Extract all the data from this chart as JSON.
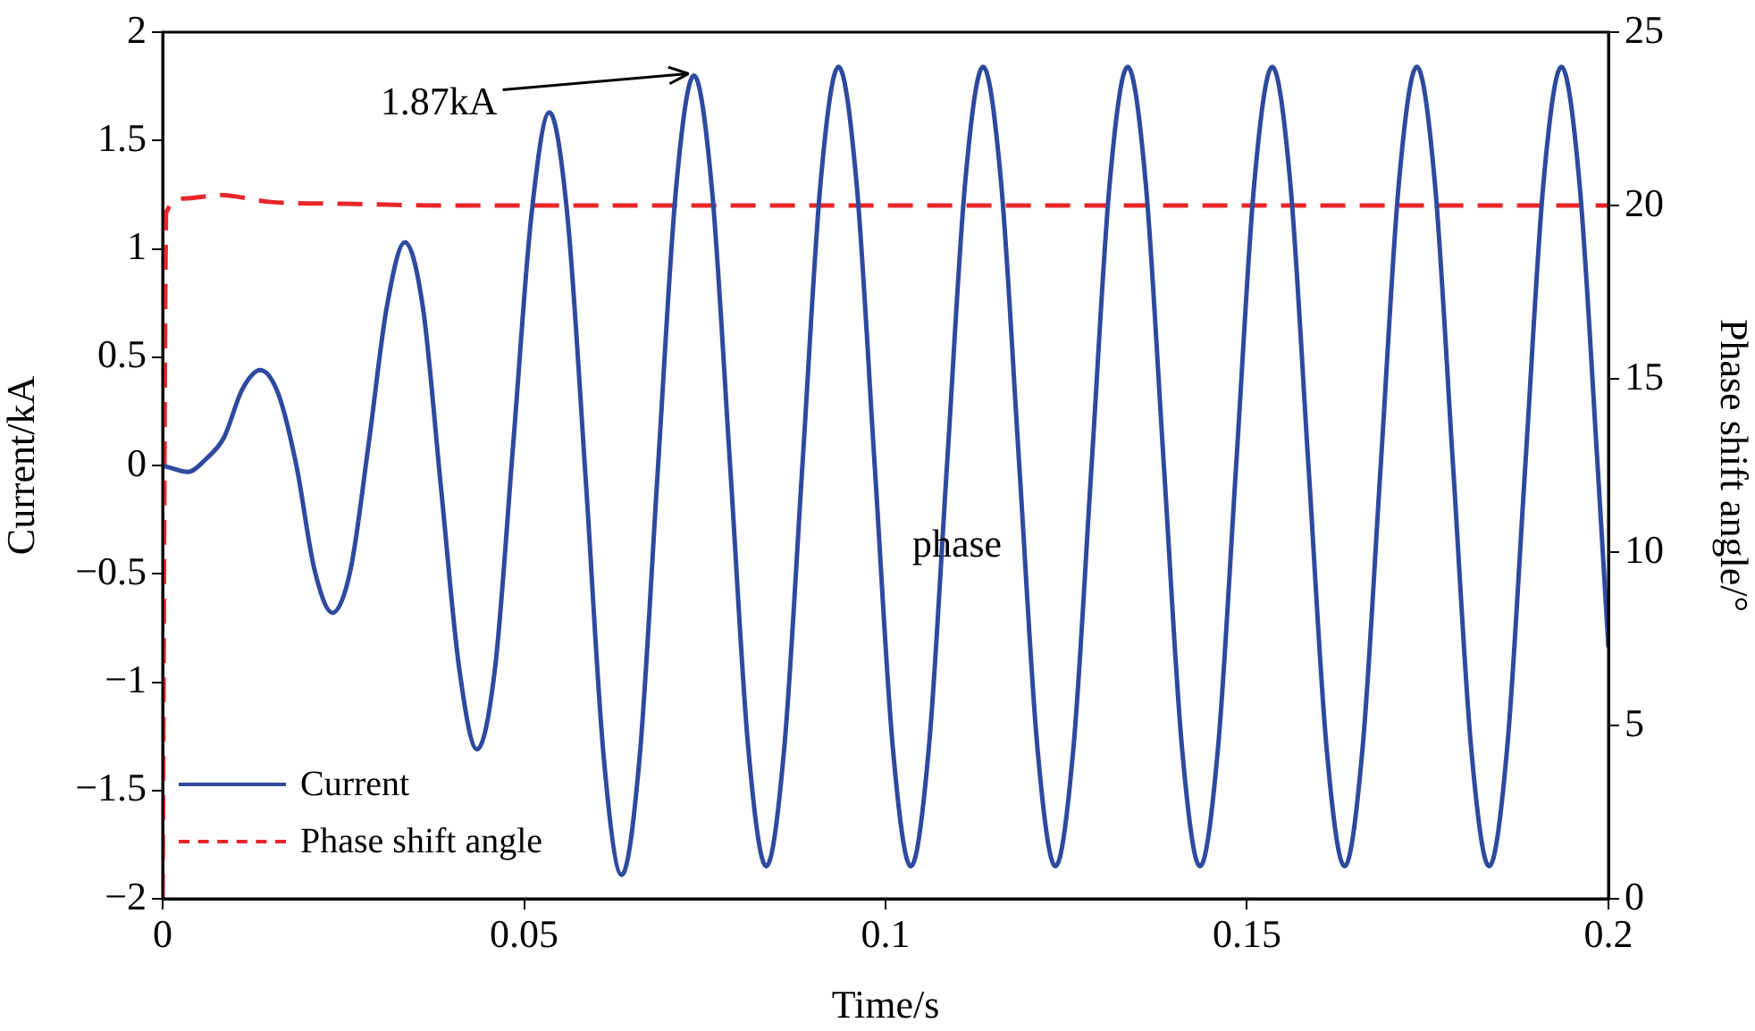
{
  "chart_data": {
    "type": "line",
    "xlabel": "Time/s",
    "ylabel": "Current/kA",
    "y2label": "Phase shift angle/°",
    "xlim": [
      0,
      0.2
    ],
    "xticks": [
      0,
      0.05,
      0.1,
      0.15,
      0.2
    ],
    "ylim": [
      -2,
      2
    ],
    "yticks": [
      {
        "value": -2,
        "label": "−2"
      },
      {
        "value": -1.5,
        "label": "−1.5"
      },
      {
        "value": -1,
        "label": "−1"
      },
      {
        "value": -0.5,
        "label": "−0.5"
      },
      0,
      0.5,
      1,
      1.5,
      2
    ],
    "y2lim": [
      0,
      25
    ],
    "y2ticks": [
      0,
      5,
      10,
      15,
      20,
      25
    ],
    "grid": false,
    "legend": "bottom left",
    "marker": "none",
    "annotations": [
      {
        "text": "1.87kA",
        "x": 0.0735,
        "y": 1.8
      },
      "phase"
    ],
    "series": [
      {
        "name": "Current",
        "color": "#2e4a9e",
        "line_style": "solid",
        "x": [
          0,
          0.001,
          0.0035,
          0.006,
          0.0085,
          0.011,
          0.0135,
          0.016,
          0.0185,
          0.021,
          0.0235,
          0.026,
          0.0285,
          0.031,
          0.0335,
          0.036,
          0.0385,
          0.041,
          0.0435,
          0.046,
          0.0485,
          0.051,
          0.0535,
          0.056,
          0.0585,
          0.061,
          0.0635,
          0.066,
          0.0685,
          0.071,
          0.0735,
          0.076,
          0.0785,
          0.081,
          0.0835,
          0.086,
          0.0885,
          0.091,
          0.0935,
          0.096,
          0.0985,
          0.101,
          0.1035,
          0.106,
          0.1085,
          0.111,
          0.1135,
          0.116,
          0.1185,
          0.121,
          0.1235,
          0.126,
          0.1285,
          0.131,
          0.1335,
          0.136,
          0.1385,
          0.141,
          0.1435,
          0.146,
          0.1485,
          0.151,
          0.1535,
          0.156,
          0.1585,
          0.161,
          0.1635,
          0.166,
          0.1685,
          0.171,
          0.1735,
          0.176,
          0.1785,
          0.181,
          0.1835,
          0.186,
          0.1885,
          0.191,
          0.1935,
          0.196,
          0.1985,
          0.2
        ],
        "values": [
          0,
          -0.01,
          -0.03,
          0.03,
          0.13,
          0.35,
          0.44,
          0.33,
          0,
          -0.48,
          -0.68,
          -0.48,
          0.1,
          0.73,
          1.03,
          0.73,
          -0.1,
          -0.93,
          -1.31,
          -0.93,
          0.1,
          1.15,
          1.63,
          1.15,
          -0.05,
          -1.34,
          -1.89,
          -1.34,
          -0.02,
          1.27,
          1.8,
          1.27,
          0,
          -1.3,
          -1.85,
          -1.3,
          0,
          1.3,
          1.84,
          1.3,
          0,
          -1.3,
          -1.85,
          -1.3,
          0,
          1.3,
          1.84,
          1.3,
          0,
          -1.3,
          -1.85,
          -1.3,
          0,
          1.3,
          1.84,
          1.3,
          0,
          -1.3,
          -1.85,
          -1.3,
          0,
          1.3,
          1.84,
          1.3,
          0,
          -1.3,
          -1.85,
          -1.3,
          0,
          1.3,
          1.84,
          1.3,
          0,
          -1.3,
          -1.85,
          -1.3,
          0,
          1.3,
          1.84,
          1.3,
          0,
          -0.84
        ]
      },
      {
        "name": "Phase shift angle",
        "color": "#e8262a",
        "line_style": "dashed",
        "axis": "y2",
        "x": [
          0,
          0.0005,
          0.003,
          0.008,
          0.015,
          0.025,
          0.04,
          0.2
        ],
        "values": [
          0,
          19.8,
          20.2,
          20.3,
          20.1,
          20.05,
          20,
          20
        ]
      }
    ]
  }
}
